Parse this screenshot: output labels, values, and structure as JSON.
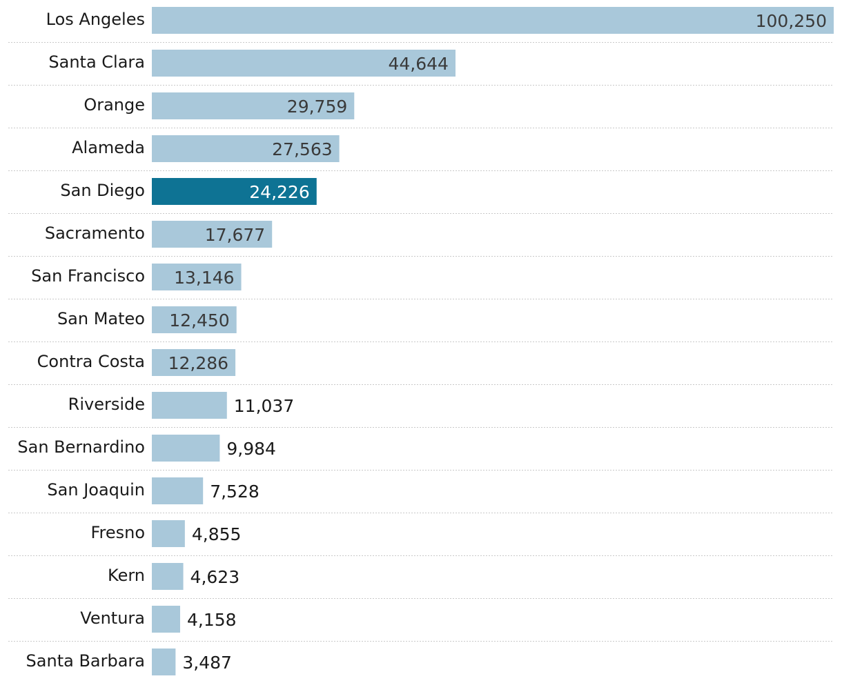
{
  "chart_data": {
    "type": "bar",
    "orientation": "horizontal",
    "categories": [
      "Los Angeles",
      "Santa Clara",
      "Orange",
      "Alameda",
      "San Diego",
      "Sacramento",
      "San Francisco",
      "San Mateo",
      "Contra Costa",
      "Riverside",
      "San Bernardino",
      "San Joaquin",
      "Fresno",
      "Kern",
      "Ventura",
      "Santa Barbara"
    ],
    "values": [
      100250,
      44644,
      29759,
      27563,
      24226,
      17677,
      13146,
      12450,
      12286,
      11037,
      9984,
      7528,
      4855,
      4623,
      4158,
      3487
    ],
    "value_labels": [
      "100,250",
      "44,644",
      "29,759",
      "27,563",
      "24,226",
      "17,677",
      "13,146",
      "12,450",
      "12,286",
      "11,037",
      "9,984",
      "7,528",
      "4,855",
      "4,623",
      "4,158",
      "3,487"
    ],
    "highlight": "San Diego",
    "xlim": [
      0,
      100250
    ],
    "grid": false,
    "colors": {
      "bar": "#a9c8da",
      "highlight": "#0e7394",
      "label_inside": "#3a3a3a",
      "label_inside_highlight": "#ffffff",
      "label_outside": "#1a1a1a"
    }
  }
}
